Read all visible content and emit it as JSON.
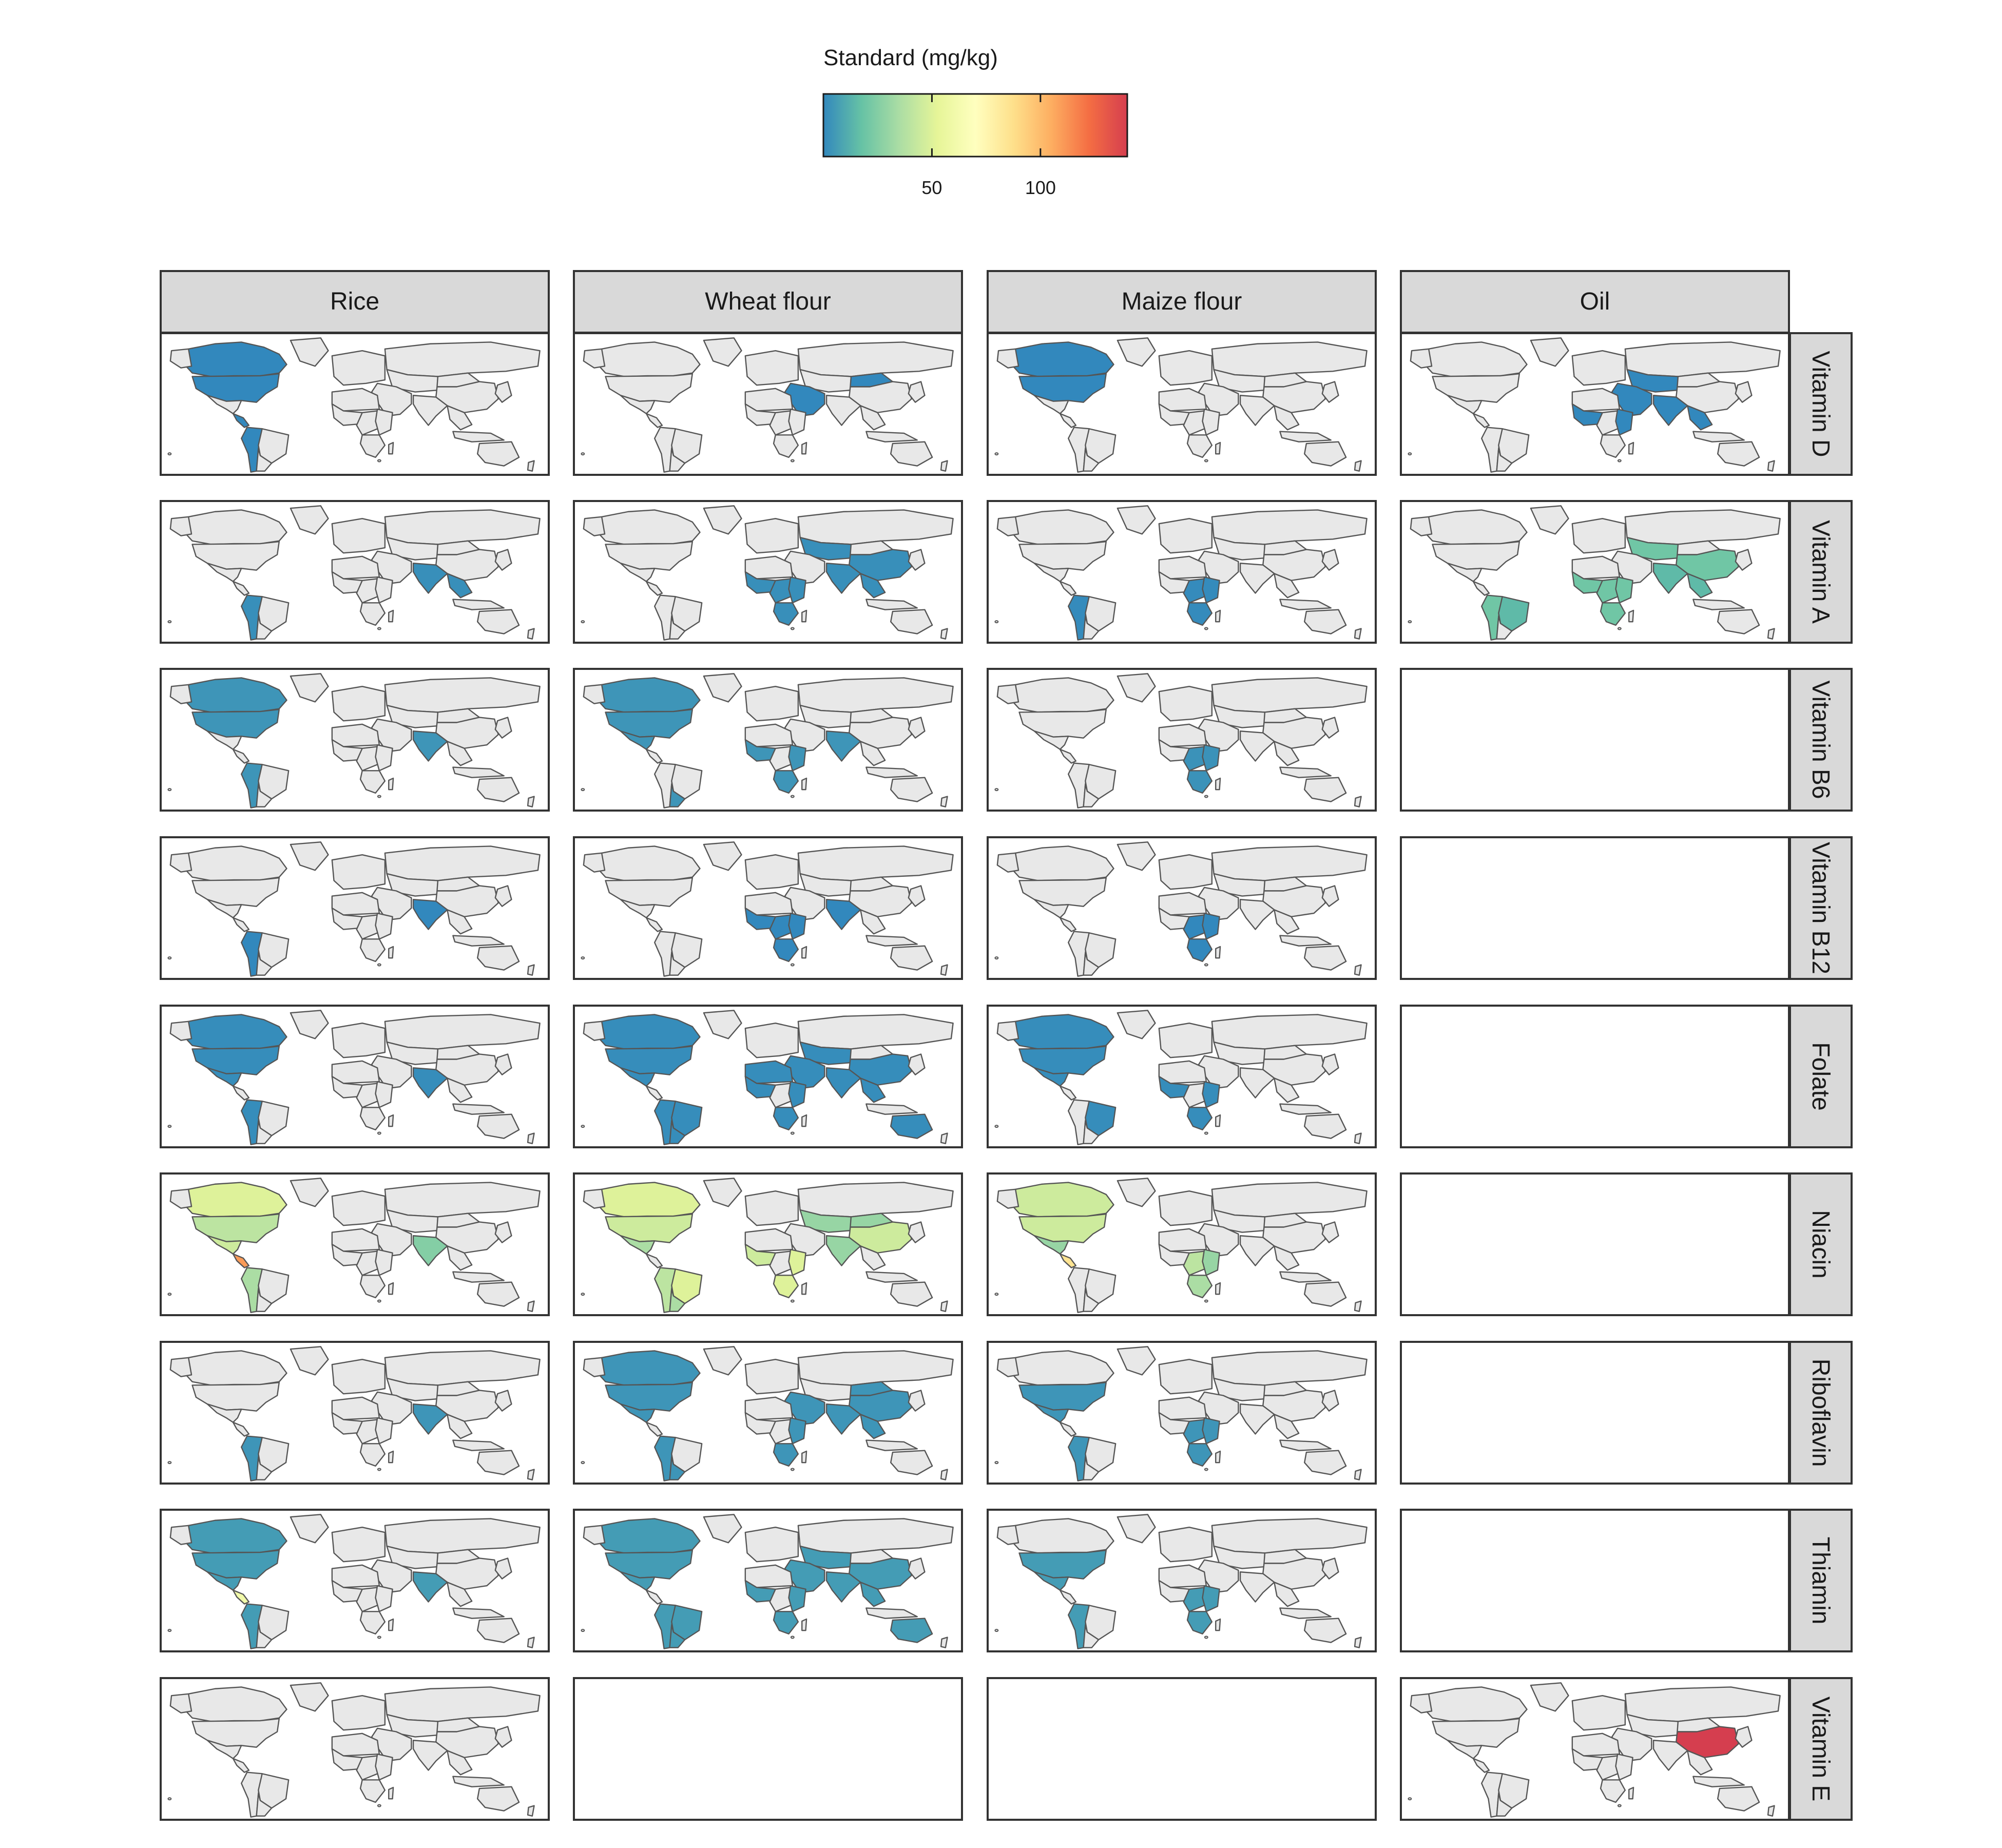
{
  "chart_data": {
    "type": "heatmap",
    "subtype": "faceted choropleth world maps",
    "legend": {
      "title": "Standard (mg/kg)",
      "position": "top",
      "min": 0,
      "max": 140,
      "ticks": [
        50,
        100
      ],
      "palette": [
        "#3288bd",
        "#66c2a5",
        "#abdda4",
        "#e6f598",
        "#ffffbf",
        "#fee08b",
        "#fdae61",
        "#f46d43",
        "#d53e4f"
      ]
    },
    "columns": [
      "Rice",
      "Wheat flour",
      "Maize flour",
      "Oil"
    ],
    "rows": [
      "Vitamin D",
      "Vitamin A",
      "Vitamin B6",
      "Vitamin B12",
      "Folate",
      "Niacin",
      "Riboflavin",
      "Thiamin",
      "Vitamin E"
    ],
    "colors": {
      "land_unmapped": "#e8e8e8",
      "borders": "#555555",
      "strip": "#d9d9d9",
      "panel_border": "#333333"
    },
    "panels": [
      {
        "row": "Vitamin D",
        "column": "Rice",
        "regions": [
          {
            "region": "Canada",
            "value": 0.03
          },
          {
            "region": "United States",
            "value": 0.03
          },
          {
            "region": "Central America",
            "value": 0.03
          },
          {
            "region": "Andes",
            "value": 0.03
          }
        ]
      },
      {
        "row": "Vitamin D",
        "column": "Wheat flour",
        "regions": [
          {
            "region": "Middle East",
            "value": 0.03
          },
          {
            "region": "Mongolia",
            "value": 0.03
          }
        ]
      },
      {
        "row": "Vitamin D",
        "column": "Maize flour",
        "regions": [
          {
            "region": "Canada",
            "value": 0.03
          },
          {
            "region": "United States",
            "value": 0.03
          }
        ]
      },
      {
        "row": "Vitamin D",
        "column": "Oil",
        "regions": [
          {
            "region": "South Asia",
            "value": 0.1
          },
          {
            "region": "Central Asia",
            "value": 0.1
          },
          {
            "region": "Middle East",
            "value": 0.1
          },
          {
            "region": "East Africa",
            "value": 0.1
          },
          {
            "region": "West Africa",
            "value": 0.1
          },
          {
            "region": "Southeast Asia",
            "value": 0.1
          }
        ]
      },
      {
        "row": "Vitamin A",
        "column": "Rice",
        "regions": [
          {
            "region": "South Asia",
            "value": 2
          },
          {
            "region": "Southeast Asia",
            "value": 2
          },
          {
            "region": "Andes",
            "value": 2
          }
        ]
      },
      {
        "row": "Vitamin A",
        "column": "Wheat flour",
        "regions": [
          {
            "region": "China",
            "value": 2
          },
          {
            "region": "South Asia",
            "value": 2
          },
          {
            "region": "East Africa",
            "value": 2
          },
          {
            "region": "Southern Africa",
            "value": 2
          },
          {
            "region": "West Africa",
            "value": 2
          },
          {
            "region": "Central Africa",
            "value": 2
          },
          {
            "region": "Southeast Asia",
            "value": 2
          },
          {
            "region": "Central Asia",
            "value": 2
          }
        ]
      },
      {
        "row": "Vitamin A",
        "column": "Maize flour",
        "regions": [
          {
            "region": "East Africa",
            "value": 1
          },
          {
            "region": "Southern Africa",
            "value": 1
          },
          {
            "region": "Central Africa",
            "value": 1
          },
          {
            "region": "Andes",
            "value": 1
          }
        ]
      },
      {
        "row": "Vitamin A",
        "column": "Oil",
        "regions": [
          {
            "region": "China",
            "value": 20
          },
          {
            "region": "South Asia",
            "value": 15
          },
          {
            "region": "West Africa",
            "value": 20
          },
          {
            "region": "East Africa",
            "value": 20
          },
          {
            "region": "Central Africa",
            "value": 20
          },
          {
            "region": "Southern Africa",
            "value": 20
          },
          {
            "region": "Brazil",
            "value": 15
          },
          {
            "region": "Andes",
            "value": 20
          },
          {
            "region": "Central Asia",
            "value": 20
          },
          {
            "region": "Southeast Asia",
            "value": 15
          }
        ]
      },
      {
        "row": "Vitamin B6",
        "column": "Rice",
        "regions": [
          {
            "region": "Canada",
            "value": 4
          },
          {
            "region": "United States",
            "value": 4
          },
          {
            "region": "South Asia",
            "value": 4
          },
          {
            "region": "Andes",
            "value": 4
          }
        ]
      },
      {
        "row": "Vitamin B6",
        "column": "Wheat flour",
        "regions": [
          {
            "region": "Canada",
            "value": 4
          },
          {
            "region": "United States",
            "value": 4
          },
          {
            "region": "Mexico",
            "value": 4
          },
          {
            "region": "South Asia",
            "value": 4
          },
          {
            "region": "East Africa",
            "value": 4
          },
          {
            "region": "Southern Africa",
            "value": 4
          },
          {
            "region": "West Africa",
            "value": 4
          },
          {
            "region": "Southern Cone",
            "value": 4
          }
        ]
      },
      {
        "row": "Vitamin B6",
        "column": "Maize flour",
        "regions": [
          {
            "region": "East Africa",
            "value": 3
          },
          {
            "region": "Southern Africa",
            "value": 3
          },
          {
            "region": "Central Africa",
            "value": 3
          }
        ]
      },
      {
        "row": "Vitamin B12",
        "column": "Rice",
        "regions": [
          {
            "region": "South Asia",
            "value": 0.01
          },
          {
            "region": "Andes",
            "value": 0.01
          }
        ]
      },
      {
        "row": "Vitamin B12",
        "column": "Wheat flour",
        "regions": [
          {
            "region": "South Asia",
            "value": 0.01
          },
          {
            "region": "East Africa",
            "value": 0.01
          },
          {
            "region": "Southern Africa",
            "value": 0.01
          },
          {
            "region": "West Africa",
            "value": 0.01
          },
          {
            "region": "Central Africa",
            "value": 0.01
          }
        ]
      },
      {
        "row": "Vitamin B12",
        "column": "Maize flour",
        "regions": [
          {
            "region": "East Africa",
            "value": 0.01
          },
          {
            "region": "Southern Africa",
            "value": 0.01
          },
          {
            "region": "Central Africa",
            "value": 0.01
          }
        ]
      },
      {
        "row": "Folate",
        "column": "Rice",
        "regions": [
          {
            "region": "Canada",
            "value": 1.5
          },
          {
            "region": "United States",
            "value": 1.5
          },
          {
            "region": "Mexico",
            "value": 1.5
          },
          {
            "region": "South Asia",
            "value": 1.5
          },
          {
            "region": "Andes",
            "value": 1.5
          }
        ]
      },
      {
        "row": "Folate",
        "column": "Wheat flour",
        "regions": [
          {
            "region": "Canada",
            "value": 1.5
          },
          {
            "region": "United States",
            "value": 1.5
          },
          {
            "region": "Mexico",
            "value": 1.5
          },
          {
            "region": "Brazil",
            "value": 1.5
          },
          {
            "region": "Andes",
            "value": 1.5
          },
          {
            "region": "Southern Cone",
            "value": 1.5
          },
          {
            "region": "China",
            "value": 1.5
          },
          {
            "region": "South Asia",
            "value": 1.5
          },
          {
            "region": "Central Asia",
            "value": 1.5
          },
          {
            "region": "Middle East",
            "value": 1.5
          },
          {
            "region": "North Africa",
            "value": 1.5
          },
          {
            "region": "West Africa",
            "value": 1.5
          },
          {
            "region": "East Africa",
            "value": 1.5
          },
          {
            "region": "Southern Africa",
            "value": 1.5
          },
          {
            "region": "Australia",
            "value": 1.5
          },
          {
            "region": "Southeast Asia",
            "value": 1.5
          }
        ]
      },
      {
        "row": "Folate",
        "column": "Maize flour",
        "regions": [
          {
            "region": "Canada",
            "value": 1.5
          },
          {
            "region": "United States",
            "value": 1.5
          },
          {
            "region": "Mexico",
            "value": 1.5
          },
          {
            "region": "Brazil",
            "value": 1.5
          },
          {
            "region": "East Africa",
            "value": 1.5
          },
          {
            "region": "Southern Africa",
            "value": 1.5
          },
          {
            "region": "West Africa",
            "value": 1.5
          }
        ]
      },
      {
        "row": "Niacin",
        "column": "Rice",
        "regions": [
          {
            "region": "Canada",
            "value": 50
          },
          {
            "region": "United States",
            "value": 40
          },
          {
            "region": "Mexico",
            "value": 45
          },
          {
            "region": "Central America",
            "value": 110
          },
          {
            "region": "South Asia",
            "value": 25
          },
          {
            "region": "Andes",
            "value": 35
          }
        ]
      },
      {
        "row": "Niacin",
        "column": "Wheat flour",
        "regions": [
          {
            "region": "Canada",
            "value": 50
          },
          {
            "region": "United States",
            "value": 45
          },
          {
            "region": "Mexico",
            "value": 35
          },
          {
            "region": "Andes",
            "value": 40
          },
          {
            "region": "Brazil",
            "value": 50
          },
          {
            "region": "Southern Cone",
            "value": 35
          },
          {
            "region": "China",
            "value": 45
          },
          {
            "region": "South Asia",
            "value": 30
          },
          {
            "region": "Central Asia",
            "value": 30
          },
          {
            "region": "Mongolia",
            "value": 30
          },
          {
            "region": "East Africa",
            "value": 50
          },
          {
            "region": "West Africa",
            "value": 45
          },
          {
            "region": "Southern Africa",
            "value": 50
          }
        ]
      },
      {
        "row": "Niacin",
        "column": "Maize flour",
        "regions": [
          {
            "region": "Canada",
            "value": 45
          },
          {
            "region": "United States",
            "value": 45
          },
          {
            "region": "Mexico",
            "value": 30
          },
          {
            "region": "Central America",
            "value": 85
          },
          {
            "region": "East Africa",
            "value": 30
          },
          {
            "region": "Southern Africa",
            "value": 35
          },
          {
            "region": "Central Africa",
            "value": 40
          }
        ]
      },
      {
        "row": "Riboflavin",
        "column": "Rice",
        "regions": [
          {
            "region": "South Asia",
            "value": 4
          },
          {
            "region": "Andes",
            "value": 4
          }
        ]
      },
      {
        "row": "Riboflavin",
        "column": "Wheat flour",
        "regions": [
          {
            "region": "Canada",
            "value": 4
          },
          {
            "region": "United States",
            "value": 4
          },
          {
            "region": "Mexico",
            "value": 4
          },
          {
            "region": "Andes",
            "value": 4
          },
          {
            "region": "Southern Cone",
            "value": 4
          },
          {
            "region": "China",
            "value": 4
          },
          {
            "region": "Mongolia",
            "value": 4
          },
          {
            "region": "South Asia",
            "value": 4
          },
          {
            "region": "Middle East",
            "value": 4
          },
          {
            "region": "East Africa",
            "value": 4
          },
          {
            "region": "Southern Africa",
            "value": 4
          },
          {
            "region": "Southeast Asia",
            "value": 4
          }
        ]
      },
      {
        "row": "Riboflavin",
        "column": "Maize flour",
        "regions": [
          {
            "region": "United States",
            "value": 4
          },
          {
            "region": "Mexico",
            "value": 4
          },
          {
            "region": "East Africa",
            "value": 4
          },
          {
            "region": "Southern Africa",
            "value": 4
          },
          {
            "region": "Central Africa",
            "value": 4
          },
          {
            "region": "Andes",
            "value": 4
          }
        ]
      },
      {
        "row": "Thiamin",
        "column": "Rice",
        "regions": [
          {
            "region": "Canada",
            "value": 6
          },
          {
            "region": "United States",
            "value": 6
          },
          {
            "region": "Mexico",
            "value": 6
          },
          {
            "region": "South Asia",
            "value": 6
          },
          {
            "region": "Andes",
            "value": 6
          },
          {
            "region": "Central America",
            "value": 60
          }
        ]
      },
      {
        "row": "Thiamin",
        "column": "Wheat flour",
        "regions": [
          {
            "region": "Canada",
            "value": 6
          },
          {
            "region": "United States",
            "value": 6
          },
          {
            "region": "Mexico",
            "value": 6
          },
          {
            "region": "Brazil",
            "value": 6
          },
          {
            "region": "Andes",
            "value": 6
          },
          {
            "region": "Southern Cone",
            "value": 6
          },
          {
            "region": "China",
            "value": 6
          },
          {
            "region": "South Asia",
            "value": 6
          },
          {
            "region": "Central Asia",
            "value": 6
          },
          {
            "region": "Middle East",
            "value": 6
          },
          {
            "region": "East Africa",
            "value": 6
          },
          {
            "region": "Southern Africa",
            "value": 6
          },
          {
            "region": "West Africa",
            "value": 6
          },
          {
            "region": "Australia",
            "value": 6
          },
          {
            "region": "Southeast Asia",
            "value": 6
          }
        ]
      },
      {
        "row": "Thiamin",
        "column": "Maize flour",
        "regions": [
          {
            "region": "United States",
            "value": 6
          },
          {
            "region": "Mexico",
            "value": 6
          },
          {
            "region": "East Africa",
            "value": 6
          },
          {
            "region": "Southern Africa",
            "value": 6
          },
          {
            "region": "Central Africa",
            "value": 6
          },
          {
            "region": "Andes",
            "value": 6
          }
        ]
      },
      {
        "row": "Vitamin E",
        "column": "Rice",
        "regions": []
      },
      {
        "row": "Vitamin E",
        "column": "Oil",
        "regions": [
          {
            "region": "China",
            "value": 140
          }
        ]
      }
    ]
  }
}
